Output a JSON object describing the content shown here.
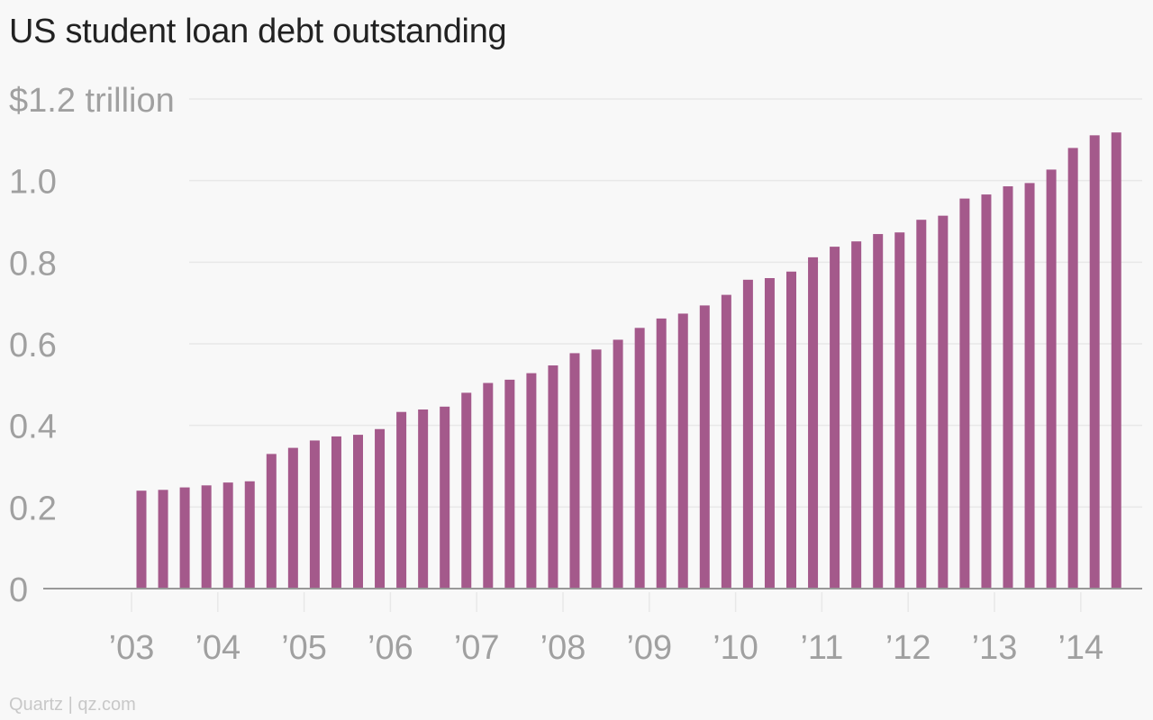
{
  "chart_title": "US student loan debt outstanding",
  "source": "Quartz | qz.com",
  "colors": {
    "bar": "#a4598b",
    "grid": "#e8e8e8",
    "axis": "#999999",
    "text_muted": "#a0a0a0",
    "title": "#222222",
    "background": "#f8f8f8"
  },
  "chart_data": {
    "type": "bar",
    "title": "US student loan debt outstanding",
    "xlabel": "",
    "ylabel": "",
    "units": "$ trillion",
    "ylim": [
      0,
      1.2
    ],
    "y_ticks": [
      {
        "value": 0,
        "label": "0"
      },
      {
        "value": 0.2,
        "label": "0.2"
      },
      {
        "value": 0.4,
        "label": "0.4"
      },
      {
        "value": 0.6,
        "label": "0.6"
      },
      {
        "value": 0.8,
        "label": "0.8"
      },
      {
        "value": 1.0,
        "label": "1.0"
      },
      {
        "value": 1.2,
        "label": "$1.2 trillion"
      }
    ],
    "x_ticks": [
      "’03",
      "’04",
      "’05",
      "’06",
      "’07",
      "’08",
      "’09",
      "’10",
      "’11",
      "’12",
      "’13",
      "’14"
    ],
    "grid": true,
    "categories": [
      "2003 Q1",
      "2003 Q2",
      "2003 Q3",
      "2003 Q4",
      "2004 Q1",
      "2004 Q2",
      "2004 Q3",
      "2004 Q4",
      "2005 Q1",
      "2005 Q2",
      "2005 Q3",
      "2005 Q4",
      "2006 Q1",
      "2006 Q2",
      "2006 Q3",
      "2006 Q4",
      "2007 Q1",
      "2007 Q2",
      "2007 Q3",
      "2007 Q4",
      "2008 Q1",
      "2008 Q2",
      "2008 Q3",
      "2008 Q4",
      "2009 Q1",
      "2009 Q2",
      "2009 Q3",
      "2009 Q4",
      "2010 Q1",
      "2010 Q2",
      "2010 Q3",
      "2010 Q4",
      "2011 Q1",
      "2011 Q2",
      "2011 Q3",
      "2011 Q4",
      "2012 Q1",
      "2012 Q2",
      "2012 Q3",
      "2012 Q4",
      "2013 Q1",
      "2013 Q2",
      "2013 Q3",
      "2013 Q4",
      "2014 Q1",
      "2014 Q2"
    ],
    "values": [
      0.24,
      0.242,
      0.248,
      0.253,
      0.26,
      0.263,
      0.33,
      0.345,
      0.363,
      0.373,
      0.377,
      0.391,
      0.433,
      0.439,
      0.446,
      0.48,
      0.504,
      0.512,
      0.528,
      0.547,
      0.577,
      0.586,
      0.61,
      0.639,
      0.662,
      0.674,
      0.694,
      0.72,
      0.757,
      0.761,
      0.777,
      0.812,
      0.838,
      0.851,
      0.869,
      0.873,
      0.904,
      0.914,
      0.956,
      0.966,
      0.986,
      0.994,
      1.027,
      1.08,
      1.111,
      1.118
    ]
  }
}
